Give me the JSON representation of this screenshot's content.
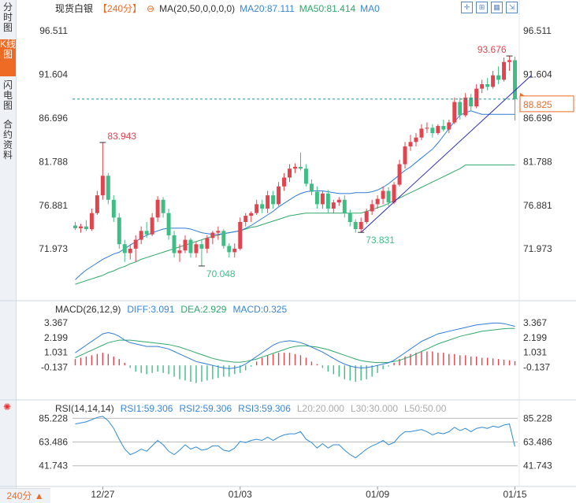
{
  "sidebar": {
    "tabs": [
      {
        "label": "分时图",
        "active": false
      },
      {
        "label": "K线图",
        "active": true
      },
      {
        "label": "闪电图",
        "active": false
      },
      {
        "label": "合约资料",
        "active": false
      }
    ]
  },
  "header": {
    "name": "现货白银",
    "period": "【240分】",
    "ma_label": "MA(20,50,0,0,0,0)",
    "ma20": "MA20:87.111",
    "ma50": "MA50:81.414",
    "ma0": "MA0"
  },
  "toolbar": {
    "icons": [
      "crosshair-icon",
      "zoom-icon",
      "layout-icon",
      "expand-icon"
    ]
  },
  "macd_header": {
    "label": "MACD(26,12,9)",
    "diff": "DIFF:3.091",
    "dea": "DEA:2.929",
    "macd": "MACD:0.325"
  },
  "rsi_header": {
    "label": "RSI(14,14,14)",
    "rsi1": "RSI1:59.306",
    "rsi2": "RSI2:59.306",
    "rsi3": "RSI3:59.306",
    "l20": "L20:20.000",
    "l30": "L30:30.000",
    "l50": "L50:50.00"
  },
  "period_selector": "240分",
  "colors": {
    "up": "#e0444f",
    "down": "#3fbd85",
    "ma20": "#2f7bd6",
    "ma50": "#2fa86b",
    "trend": "#2a2ab4",
    "current": "#ee6b26"
  },
  "chart_data": [
    {
      "type": "candlestick",
      "title": "现货白银 240分",
      "y_ticks": [
        "96.511",
        "91.604",
        "86.696",
        "81.788",
        "76.881",
        "71.973"
      ],
      "ylim": [
        66.5,
        98.2
      ],
      "x_ticks": [
        {
          "label": "12/27",
          "index": 5
        },
        {
          "label": "01/03",
          "index": 30
        },
        {
          "label": "01/09",
          "index": 55
        },
        {
          "label": "01/15",
          "index": 80
        }
      ],
      "current_price": "88.825",
      "annotations": [
        {
          "text": "83.943",
          "index": 5,
          "value": 83.943,
          "kind": "high"
        },
        {
          "text": "70.048",
          "index": 23,
          "value": 70.048,
          "kind": "low"
        },
        {
          "text": "73.831",
          "index": 52,
          "value": 73.831,
          "kind": "low"
        },
        {
          "text": "93.676",
          "index": 79,
          "value": 93.676,
          "kind": "high"
        }
      ],
      "ohlc": [
        [
          74.6,
          75.0,
          74.1,
          74.3
        ],
        [
          74.3,
          74.8,
          73.8,
          74.5
        ],
        [
          74.5,
          75.2,
          74.0,
          74.2
        ],
        [
          74.2,
          76.5,
          74.0,
          76.0
        ],
        [
          76.0,
          78.5,
          75.8,
          78.0
        ],
        [
          78.0,
          83.9,
          77.5,
          80.2
        ],
        [
          80.2,
          80.5,
          77.0,
          77.5
        ],
        [
          77.5,
          78.0,
          75.0,
          75.5
        ],
        [
          75.5,
          76.0,
          72.0,
          72.5
        ],
        [
          72.5,
          73.0,
          70.5,
          71.5
        ],
        [
          71.5,
          72.5,
          70.8,
          72.0
        ],
        [
          72.0,
          73.5,
          70.5,
          73.0
        ],
        [
          73.0,
          74.5,
          72.5,
          74.0
        ],
        [
          74.0,
          75.0,
          73.2,
          73.6
        ],
        [
          73.6,
          76.0,
          73.4,
          75.5
        ],
        [
          75.5,
          77.9,
          75.0,
          77.5
        ],
        [
          77.5,
          77.8,
          75.5,
          76.0
        ],
        [
          76.0,
          76.5,
          73.0,
          73.5
        ],
        [
          73.5,
          74.0,
          71.0,
          71.5
        ],
        [
          71.5,
          72.5,
          70.5,
          71.8
        ],
        [
          71.8,
          73.5,
          71.5,
          73.0
        ],
        [
          73.0,
          73.2,
          71.0,
          71.5
        ],
        [
          71.5,
          72.8,
          71.0,
          72.5
        ],
        [
          72.5,
          73.0,
          70.0,
          72.0
        ],
        [
          72.0,
          73.5,
          71.5,
          73.2
        ],
        [
          73.2,
          74.0,
          72.5,
          73.8
        ],
        [
          73.8,
          74.5,
          73.0,
          74.0
        ],
        [
          74.0,
          74.2,
          72.0,
          72.3
        ],
        [
          72.3,
          72.6,
          71.0,
          71.6
        ],
        [
          71.6,
          72.6,
          71.0,
          72.0
        ],
        [
          72.0,
          75.5,
          71.8,
          75.0
        ],
        [
          75.0,
          76.0,
          74.5,
          75.7
        ],
        [
          75.7,
          76.2,
          75.0,
          76.0
        ],
        [
          76.0,
          77.5,
          75.8,
          77.0
        ],
        [
          77.0,
          77.5,
          76.0,
          76.5
        ],
        [
          76.5,
          78.5,
          76.0,
          78.0
        ],
        [
          78.0,
          78.5,
          76.5,
          77.0
        ],
        [
          77.0,
          79.5,
          76.8,
          79.0
        ],
        [
          79.0,
          80.5,
          78.5,
          80.0
        ],
        [
          80.0,
          81.5,
          79.5,
          81.0
        ],
        [
          81.0,
          81.6,
          80.5,
          81.2
        ],
        [
          81.2,
          82.8,
          80.8,
          81.0
        ],
        [
          81.0,
          81.5,
          79.0,
          79.3
        ],
        [
          79.3,
          79.8,
          78.0,
          78.4
        ],
        [
          78.4,
          79.0,
          76.5,
          77.0
        ],
        [
          77.0,
          78.5,
          76.5,
          78.2
        ],
        [
          78.2,
          78.6,
          76.0,
          76.5
        ],
        [
          76.5,
          77.5,
          76.0,
          77.2
        ],
        [
          77.2,
          77.8,
          76.8,
          77.5
        ],
        [
          77.5,
          78.0,
          75.5,
          76.0
        ],
        [
          76.0,
          76.4,
          74.5,
          75.0
        ],
        [
          75.0,
          75.3,
          73.8,
          74.2
        ],
        [
          74.2,
          75.5,
          73.8,
          75.0
        ],
        [
          75.0,
          76.5,
          74.8,
          76.2
        ],
        [
          76.2,
          77.5,
          75.8,
          77.0
        ],
        [
          77.0,
          78.0,
          76.5,
          77.6
        ],
        [
          77.6,
          79.0,
          77.0,
          78.5
        ],
        [
          78.5,
          78.9,
          76.8,
          77.2
        ],
        [
          77.2,
          79.5,
          77.0,
          79.2
        ],
        [
          79.2,
          82.0,
          79.0,
          81.5
        ],
        [
          81.5,
          84.0,
          81.0,
          83.5
        ],
        [
          83.5,
          84.8,
          83.0,
          84.0
        ],
        [
          84.0,
          85.0,
          83.5,
          84.5
        ],
        [
          84.5,
          86.0,
          84.2,
          85.5
        ],
        [
          85.5,
          86.2,
          85.0,
          85.6
        ],
        [
          85.6,
          86.0,
          84.5,
          85.0
        ],
        [
          85.0,
          86.0,
          84.8,
          85.8
        ],
        [
          85.8,
          86.5,
          85.2,
          85.4
        ],
        [
          85.4,
          86.5,
          85.0,
          86.2
        ],
        [
          86.2,
          89.0,
          86.0,
          88.5
        ],
        [
          88.5,
          89.0,
          86.5,
          87.0
        ],
        [
          87.0,
          89.5,
          86.8,
          89.0
        ],
        [
          89.0,
          89.4,
          87.5,
          88.0
        ],
        [
          88.0,
          90.5,
          87.8,
          90.0
        ],
        [
          90.0,
          91.0,
          89.5,
          90.5
        ],
        [
          90.5,
          91.2,
          89.8,
          90.2
        ],
        [
          90.2,
          92.0,
          90.0,
          91.5
        ],
        [
          91.5,
          92.5,
          90.5,
          91.0
        ],
        [
          91.0,
          93.5,
          90.8,
          93.0
        ],
        [
          93.0,
          93.676,
          92.0,
          93.2
        ],
        [
          93.2,
          93.6,
          86.4,
          88.825
        ]
      ],
      "ma20": [
        68.5,
        69.1,
        69.6,
        70.0,
        70.4,
        70.8,
        71.1,
        71.4,
        71.6,
        72.0,
        72.4,
        72.8,
        73.2,
        73.5,
        73.8,
        74.0,
        74.2,
        74.3,
        74.3,
        74.3,
        74.3,
        74.2,
        74.0,
        73.8,
        73.7,
        73.6,
        73.6,
        73.7,
        73.8,
        73.9,
        74.0,
        74.3,
        74.6,
        75.0,
        75.4,
        75.8,
        76.2,
        76.7,
        77.1,
        77.5,
        77.9,
        78.2,
        78.4,
        78.5,
        78.5,
        78.5,
        78.4,
        78.3,
        78.2,
        78.2,
        78.2,
        78.3,
        78.3,
        78.3,
        78.4,
        78.6,
        78.9,
        79.3,
        79.8,
        80.3,
        80.8,
        81.2,
        81.7,
        82.2,
        82.7,
        83.2,
        83.9,
        84.7,
        85.5,
        86.3,
        87.0,
        87.3,
        87.5,
        87.3,
        87.111,
        87.111,
        87.111,
        87.111,
        87.111,
        87.111,
        87.111
      ],
      "ma50": [
        68.0,
        68.2,
        68.4,
        68.6,
        68.8,
        69.0,
        69.3,
        69.5,
        69.8,
        70.0,
        70.3,
        70.5,
        70.8,
        71.0,
        71.2,
        71.4,
        71.6,
        71.8,
        72.0,
        72.2,
        72.4,
        72.6,
        72.8,
        73.0,
        73.2,
        73.4,
        73.5,
        73.7,
        73.8,
        73.9,
        74.0,
        74.2,
        74.4,
        74.5,
        74.7,
        74.9,
        75.1,
        75.3,
        75.5,
        75.7,
        75.8,
        75.9,
        76.0,
        76.0,
        76.0,
        76.0,
        76.0,
        76.0,
        76.0,
        76.0,
        76.0,
        76.0,
        76.0,
        76.2,
        76.4,
        76.6,
        76.8,
        77.1,
        77.4,
        77.7,
        78.0,
        78.3,
        78.6,
        78.9,
        79.2,
        79.5,
        79.8,
        80.1,
        80.4,
        80.7,
        81.0,
        81.414,
        81.414,
        81.414,
        81.414,
        81.414,
        81.414,
        81.414,
        81.414,
        81.414,
        81.414
      ],
      "trendline": {
        "from_index": 52,
        "from_value": 73.831,
        "to_index": 83,
        "to_value": 91.5
      }
    },
    {
      "type": "macd",
      "y_ticks": [
        "3.367",
        "2.199",
        "1.031",
        "-0.137"
      ],
      "ylim": [
        -1.3,
        4.0
      ],
      "diff": [
        1.0,
        1.3,
        1.6,
        1.9,
        2.2,
        2.5,
        2.6,
        2.5,
        2.3,
        2.0,
        1.8,
        1.7,
        1.6,
        1.5,
        1.5,
        1.5,
        1.4,
        1.3,
        1.1,
        0.9,
        0.7,
        0.5,
        0.3,
        0.2,
        0.1,
        0.0,
        -0.1,
        -0.2,
        -0.25,
        -0.2,
        -0.1,
        0.1,
        0.4,
        0.7,
        1.0,
        1.3,
        1.6,
        1.8,
        1.9,
        1.95,
        1.9,
        1.8,
        1.65,
        1.45,
        1.25,
        1.05,
        0.8,
        0.55,
        0.3,
        0.1,
        -0.05,
        -0.15,
        -0.2,
        -0.18,
        -0.1,
        0.0,
        0.1,
        0.2,
        0.4,
        0.7,
        1.0,
        1.3,
        1.6,
        1.9,
        2.1,
        2.3,
        2.5,
        2.6,
        2.7,
        2.8,
        2.9,
        3.0,
        3.1,
        3.2,
        3.25,
        3.3,
        3.35,
        3.35,
        3.3,
        3.2,
        3.091
      ],
      "dea": [
        0.6,
        0.8,
        1.0,
        1.2,
        1.4,
        1.6,
        1.8,
        1.9,
        2.0,
        2.0,
        2.0,
        1.95,
        1.9,
        1.85,
        1.8,
        1.75,
        1.7,
        1.65,
        1.55,
        1.45,
        1.3,
        1.15,
        1.0,
        0.85,
        0.7,
        0.55,
        0.45,
        0.35,
        0.3,
        0.25,
        0.25,
        0.3,
        0.4,
        0.5,
        0.65,
        0.8,
        0.95,
        1.1,
        1.25,
        1.4,
        1.5,
        1.55,
        1.55,
        1.5,
        1.45,
        1.35,
        1.25,
        1.1,
        0.95,
        0.8,
        0.65,
        0.5,
        0.38,
        0.3,
        0.25,
        0.22,
        0.22,
        0.24,
        0.3,
        0.4,
        0.55,
        0.7,
        0.9,
        1.1,
        1.3,
        1.5,
        1.7,
        1.85,
        2.0,
        2.15,
        2.3,
        2.4,
        2.5,
        2.6,
        2.7,
        2.75,
        2.8,
        2.85,
        2.9,
        2.92,
        2.929
      ],
      "macd": [
        0.5,
        0.6,
        0.7,
        0.8,
        0.9,
        1.0,
        0.9,
        0.7,
        0.5,
        0.2,
        -0.2,
        -0.5,
        -0.6,
        -0.7,
        -0.6,
        -0.5,
        -0.6,
        -0.7,
        -0.9,
        -1.1,
        -1.2,
        -1.3,
        -1.4,
        -1.3,
        -1.2,
        -1.1,
        -1.0,
        -0.9,
        -0.9,
        -0.7,
        -0.6,
        -0.4,
        -0.1,
        0.3,
        0.6,
        0.8,
        0.9,
        1.0,
        1.0,
        1.0,
        0.9,
        0.8,
        0.6,
        0.3,
        0.1,
        -0.2,
        -0.5,
        -0.7,
        -0.9,
        -1.1,
        -1.2,
        -1.3,
        -1.2,
        -1.1,
        -0.9,
        -0.6,
        -0.3,
        -0.1,
        0.2,
        0.5,
        0.7,
        0.9,
        1.0,
        1.1,
        1.1,
        1.1,
        1.0,
        1.0,
        0.9,
        0.9,
        0.8,
        0.8,
        0.7,
        0.7,
        0.6,
        0.6,
        0.55,
        0.5,
        0.45,
        0.4,
        0.325
      ]
    },
    {
      "type": "rsi",
      "y_ticks": [
        "85.228",
        "63.486",
        "41.743"
      ],
      "ylim": [
        30,
        92
      ],
      "rsi": [
        80,
        81,
        82,
        84,
        86,
        87,
        83,
        76,
        66,
        57,
        52,
        54,
        57,
        55,
        60,
        65,
        61,
        55,
        52,
        56,
        61,
        57,
        59,
        56,
        57,
        60,
        60,
        56,
        55,
        58,
        64,
        63,
        65,
        66,
        65,
        68,
        65,
        68,
        70,
        71,
        71,
        73,
        66,
        63,
        58,
        62,
        58,
        61,
        61,
        56,
        52,
        49,
        53,
        57,
        60,
        62,
        65,
        61,
        63,
        69,
        73,
        73,
        74,
        75,
        73,
        70,
        72,
        71,
        73,
        77,
        74,
        76,
        73,
        76,
        77,
        76,
        78,
        77,
        79,
        80,
        59.3
      ],
      "levels": [
        85.228,
        63.486,
        41.743
      ]
    }
  ]
}
